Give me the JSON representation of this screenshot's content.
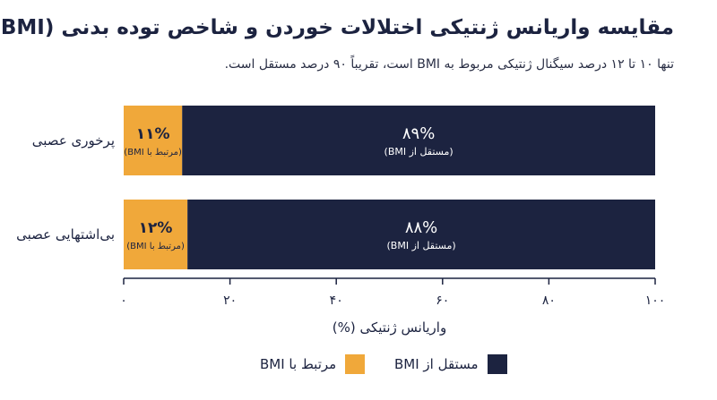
{
  "title": "مقایسه واریانس ژنتیکی اختلالات خوردن و شاخص توده بدنی (BMI)",
  "subtitle": "تنها ۱۰ تا ۱۲ درصد سیگنال ژنتیکی مربوط به BMI است، تقریباً ۹۰ درصد مستقل است.",
  "colors": {
    "related": "#f0a83a",
    "independent": "#1c2340",
    "axis": "#1c2340"
  },
  "chart_data": {
    "type": "bar",
    "orientation": "horizontal",
    "stacked": true,
    "categories": [
      "پرخوری عصبی",
      "بی‌اشتهایی عصبی"
    ],
    "series": [
      {
        "name": "مرتبط با BMI",
        "values": [
          11,
          12
        ],
        "labels": [
          "۱۱%",
          "۱۲%"
        ],
        "sublabel": "(مرتبط با BMI)"
      },
      {
        "name": "مستقل از BMI",
        "values": [
          89,
          88
        ],
        "labels": [
          "۸۹%",
          "۸۸%"
        ],
        "sublabel": "(مستقل از BMI)"
      }
    ],
    "xlim": [
      0,
      100
    ],
    "xticks": [
      0,
      20,
      40,
      60,
      80,
      100
    ],
    "xtick_labels": [
      "۰",
      "۲۰",
      "۴۰",
      "۶۰",
      "۸۰",
      "۱۰۰"
    ],
    "xlabel": "واریانس ژنتیکی (%)",
    "legend_position": "bottom"
  }
}
